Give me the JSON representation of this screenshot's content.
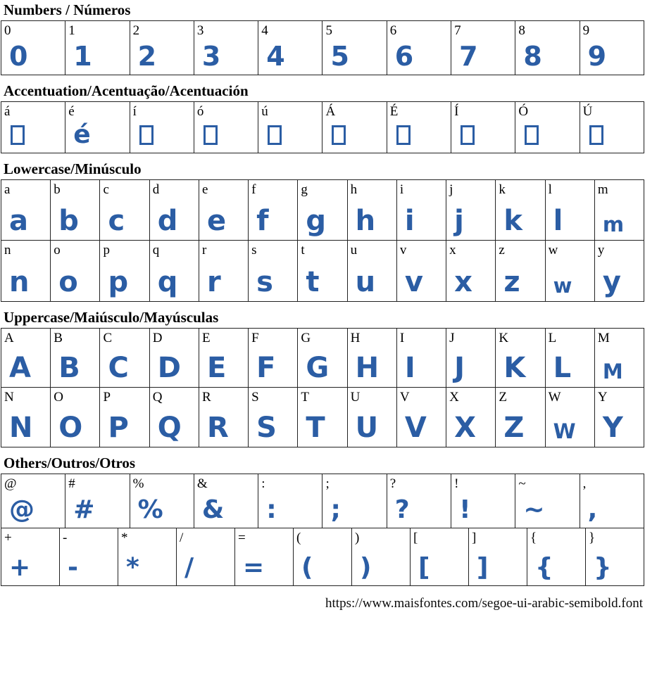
{
  "accent_color": "#2b5da4",
  "border_color": "#222222",
  "footer": {
    "url": "https://www.maisfontes.com/segoe-ui-arabic-semibold.font"
  },
  "sections": [
    {
      "id": "numbers",
      "title": "Numbers / Números",
      "rows": [
        [
          {
            "label": "0",
            "glyph": "0"
          },
          {
            "label": "1",
            "glyph": "1"
          },
          {
            "label": "2",
            "glyph": "2"
          },
          {
            "label": "3",
            "glyph": "3"
          },
          {
            "label": "4",
            "glyph": "4"
          },
          {
            "label": "5",
            "glyph": "5"
          },
          {
            "label": "6",
            "glyph": "6"
          },
          {
            "label": "7",
            "glyph": "7"
          },
          {
            "label": "8",
            "glyph": "8"
          },
          {
            "label": "9",
            "glyph": "9"
          }
        ]
      ]
    },
    {
      "id": "accentuation",
      "title": "Accentuation/Acentuação/Acentuación",
      "rows": [
        [
          {
            "label": "á",
            "glyph": null,
            "missing": true
          },
          {
            "label": "é",
            "glyph": "é"
          },
          {
            "label": "í",
            "glyph": null,
            "missing": true
          },
          {
            "label": "ó",
            "glyph": null,
            "missing": true
          },
          {
            "label": "ú",
            "glyph": null,
            "missing": true
          },
          {
            "label": "Á",
            "glyph": null,
            "missing": true
          },
          {
            "label": "É",
            "glyph": null,
            "missing": true
          },
          {
            "label": "Í",
            "glyph": null,
            "missing": true
          },
          {
            "label": "Ó",
            "glyph": null,
            "missing": true
          },
          {
            "label": "Ú",
            "glyph": null,
            "missing": true
          }
        ]
      ]
    },
    {
      "id": "lowercase",
      "title": "Lowercase/Minúsculo",
      "rows": [
        [
          {
            "label": "a",
            "glyph": "a"
          },
          {
            "label": "b",
            "glyph": "b"
          },
          {
            "label": "c",
            "glyph": "c"
          },
          {
            "label": "d",
            "glyph": "d"
          },
          {
            "label": "e",
            "glyph": "e"
          },
          {
            "label": "f",
            "glyph": "f"
          },
          {
            "label": "g",
            "glyph": "g"
          },
          {
            "label": "h",
            "glyph": "h"
          },
          {
            "label": "i",
            "glyph": "i"
          },
          {
            "label": "j",
            "glyph": "j"
          },
          {
            "label": "k",
            "glyph": "k"
          },
          {
            "label": "l",
            "glyph": "l"
          },
          {
            "label": "m",
            "glyph": "m",
            "small": true
          }
        ],
        [
          {
            "label": "n",
            "glyph": "n"
          },
          {
            "label": "o",
            "glyph": "o"
          },
          {
            "label": "p",
            "glyph": "p"
          },
          {
            "label": "q",
            "glyph": "q"
          },
          {
            "label": "r",
            "glyph": "r"
          },
          {
            "label": "s",
            "glyph": "s"
          },
          {
            "label": "t",
            "glyph": "t"
          },
          {
            "label": "u",
            "glyph": "u"
          },
          {
            "label": "v",
            "glyph": "v"
          },
          {
            "label": "x",
            "glyph": "x"
          },
          {
            "label": "z",
            "glyph": "z"
          },
          {
            "label": "w",
            "glyph": "w",
            "small": true
          },
          {
            "label": "y",
            "glyph": "y"
          }
        ]
      ]
    },
    {
      "id": "uppercase",
      "title": "Uppercase/Maiúsculo/Mayúsculas",
      "rows": [
        [
          {
            "label": "A",
            "glyph": "A"
          },
          {
            "label": "B",
            "glyph": "B"
          },
          {
            "label": "C",
            "glyph": "C"
          },
          {
            "label": "D",
            "glyph": "D"
          },
          {
            "label": "E",
            "glyph": "E"
          },
          {
            "label": "F",
            "glyph": "F"
          },
          {
            "label": "G",
            "glyph": "G"
          },
          {
            "label": "H",
            "glyph": "H"
          },
          {
            "label": "I",
            "glyph": "I"
          },
          {
            "label": "J",
            "glyph": "J"
          },
          {
            "label": "K",
            "glyph": "K"
          },
          {
            "label": "L",
            "glyph": "L"
          },
          {
            "label": "M",
            "glyph": "M",
            "small": true
          }
        ],
        [
          {
            "label": "N",
            "glyph": "N"
          },
          {
            "label": "O",
            "glyph": "O"
          },
          {
            "label": "P",
            "glyph": "P"
          },
          {
            "label": "Q",
            "glyph": "Q"
          },
          {
            "label": "R",
            "glyph": "R"
          },
          {
            "label": "S",
            "glyph": "S"
          },
          {
            "label": "T",
            "glyph": "T"
          },
          {
            "label": "U",
            "glyph": "U"
          },
          {
            "label": "V",
            "glyph": "V"
          },
          {
            "label": "X",
            "glyph": "X"
          },
          {
            "label": "Z",
            "glyph": "Z"
          },
          {
            "label": "W",
            "glyph": "W",
            "small": true
          },
          {
            "label": "Y",
            "glyph": "Y"
          }
        ]
      ]
    },
    {
      "id": "others",
      "title": "Others/Outros/Otros",
      "rows": [
        [
          {
            "label": "@",
            "glyph": "@"
          },
          {
            "label": "#",
            "glyph": "#"
          },
          {
            "label": "%",
            "glyph": "%"
          },
          {
            "label": "&",
            "glyph": "&"
          },
          {
            "label": ":",
            "glyph": ":"
          },
          {
            "label": ";",
            "glyph": ";"
          },
          {
            "label": "?",
            "glyph": "?"
          },
          {
            "label": "!",
            "glyph": "!"
          },
          {
            "label": "~",
            "glyph": "~"
          },
          {
            "label": ",",
            "glyph": ","
          }
        ],
        [
          {
            "label": "+",
            "glyph": "+"
          },
          {
            "label": "-",
            "glyph": "-"
          },
          {
            "label": "*",
            "glyph": "*"
          },
          {
            "label": "/",
            "glyph": "/"
          },
          {
            "label": "=",
            "glyph": "="
          },
          {
            "label": "(",
            "glyph": "("
          },
          {
            "label": ")",
            "glyph": ")"
          },
          {
            "label": "[",
            "glyph": "["
          },
          {
            "label": "]",
            "glyph": "]"
          },
          {
            "label": "{",
            "glyph": "{"
          },
          {
            "label": "}",
            "glyph": "}"
          }
        ]
      ]
    }
  ]
}
